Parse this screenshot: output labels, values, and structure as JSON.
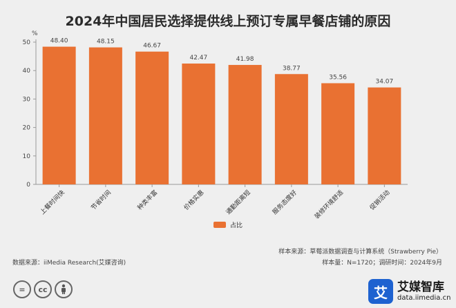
{
  "title": "2024年中国居民选择提供线上预订专属早餐店铺的原因",
  "unit": "%",
  "legend": {
    "label": "占比",
    "color": "#e97132"
  },
  "source_left": "数据来源：iiMedia Research(艾媒咨询)",
  "source_right": {
    "line1": "样本来源：草莓派数据调查与计算系统（Strawberry Pie）",
    "line2": "样本量：N=1720；调研时间：2024年9月"
  },
  "license_icons": [
    "=",
    "cc",
    "person-icon"
  ],
  "brand": {
    "logo_char": "艾",
    "name": "艾媒智库",
    "url": "data.iimedia.cn"
  },
  "chart_data": {
    "type": "bar",
    "categories": [
      "上餐时间快",
      "节省时间",
      "种类丰富",
      "价格实惠",
      "通勤距离短",
      "服务态度好",
      "装修环境舒适",
      "促销活动"
    ],
    "values": [
      48.4,
      48.15,
      46.67,
      42.47,
      41.98,
      38.77,
      35.56,
      34.07
    ],
    "value_labels": [
      "48.40",
      "48.15",
      "46.67",
      "42.47",
      "41.98",
      "38.77",
      "35.56",
      "34.07"
    ],
    "ylim": [
      0,
      50
    ],
    "yticks": [
      0,
      10,
      20,
      30,
      40,
      50
    ],
    "bar_color": "#e97132",
    "grid": false,
    "legend_position": "bottom-center"
  }
}
